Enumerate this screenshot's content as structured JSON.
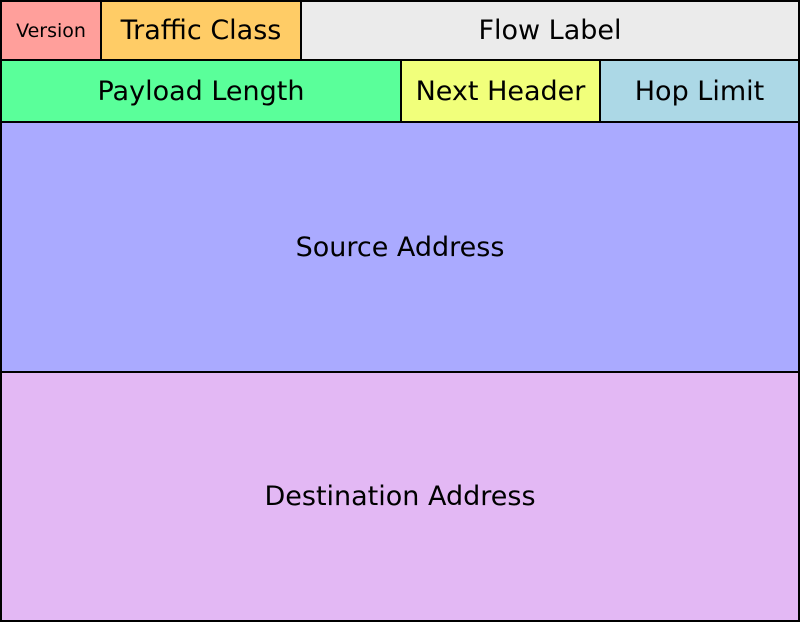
{
  "header": {
    "version": {
      "label": "Version",
      "color": "#ff9f9b"
    },
    "traffic_class": {
      "label": "Traffic Class",
      "color": "#ffcc66"
    },
    "flow_label": {
      "label": "Flow Label",
      "color": "#ebebeb"
    },
    "payload_length": {
      "label": "Payload Length",
      "color": "#5aff9a"
    },
    "next_header": {
      "label": "Next Header",
      "color": "#f1ff7b"
    },
    "hop_limit": {
      "label": "Hop Limit",
      "color": "#acd8e6"
    },
    "source_address": {
      "label": "Source Address",
      "color": "#aaaaff"
    },
    "destination_address": {
      "label": "Destination Address",
      "color": "#e3b8f4"
    }
  }
}
